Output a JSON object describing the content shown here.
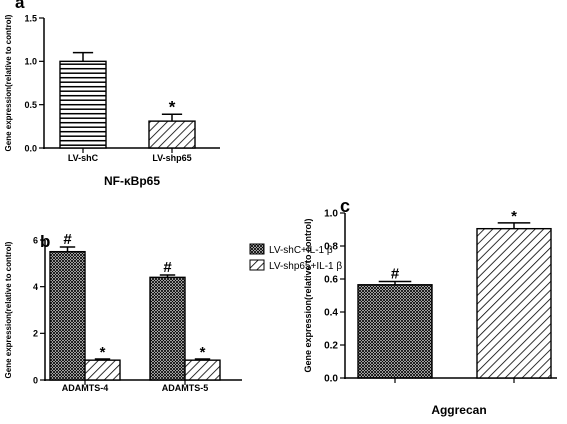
{
  "chart_data": [
    {
      "panel_label": "a",
      "type": "bar",
      "categories": [
        "LV-shC",
        "LV-shp65"
      ],
      "series": [
        {
          "values": [
            1.0,
            0.31
          ],
          "errors": [
            0.1,
            0.08
          ],
          "patterns": [
            "hstripe",
            "diag"
          ]
        }
      ],
      "significance": [
        "",
        "*"
      ],
      "ylabel": "Gene expression(relative to control)",
      "xlabel": "NF-κBp65",
      "ylim": [
        0,
        1.5
      ],
      "yticks": [
        "0.0",
        "0.5",
        "1.0",
        "1.5"
      ],
      "grid": false
    },
    {
      "panel_label": "b",
      "type": "bar",
      "categories": [
        "ADAMTS-4",
        "ADAMTS-5"
      ],
      "series": [
        {
          "name": "LV-shC+IL-1 β",
          "values": [
            5.5,
            4.4
          ],
          "errors": [
            0.2,
            0.1
          ],
          "pattern": "crosshatch",
          "markers": [
            "#",
            "#"
          ]
        },
        {
          "name": "LV-shp65+IL-1 β",
          "values": [
            0.85,
            0.85
          ],
          "errors": [
            0.05,
            0.05
          ],
          "pattern": "diag",
          "markers": [
            "*",
            "*"
          ]
        }
      ],
      "ylabel": "Gene expression(relative to control)",
      "xlabel": "",
      "ylim": [
        0,
        6
      ],
      "yticks": [
        "0",
        "2",
        "4",
        "6"
      ],
      "legend": "top-right",
      "grid": false
    },
    {
      "panel_label": "c",
      "type": "bar",
      "categories": [
        "",
        ""
      ],
      "series": [
        {
          "values": [
            0.565,
            0.905
          ],
          "errors": [
            0.02,
            0.035
          ],
          "patterns": [
            "crosshatch",
            "diag"
          ]
        }
      ],
      "significance": [
        "#",
        "*"
      ],
      "ylabel": "Gene expression(relative to control)",
      "xlabel": "Aggrecan",
      "ylim": [
        0,
        1.0
      ],
      "yticks": [
        "0.0",
        "0.2",
        "0.4",
        "0.6",
        "0.8",
        "1.0"
      ],
      "grid": false
    }
  ]
}
